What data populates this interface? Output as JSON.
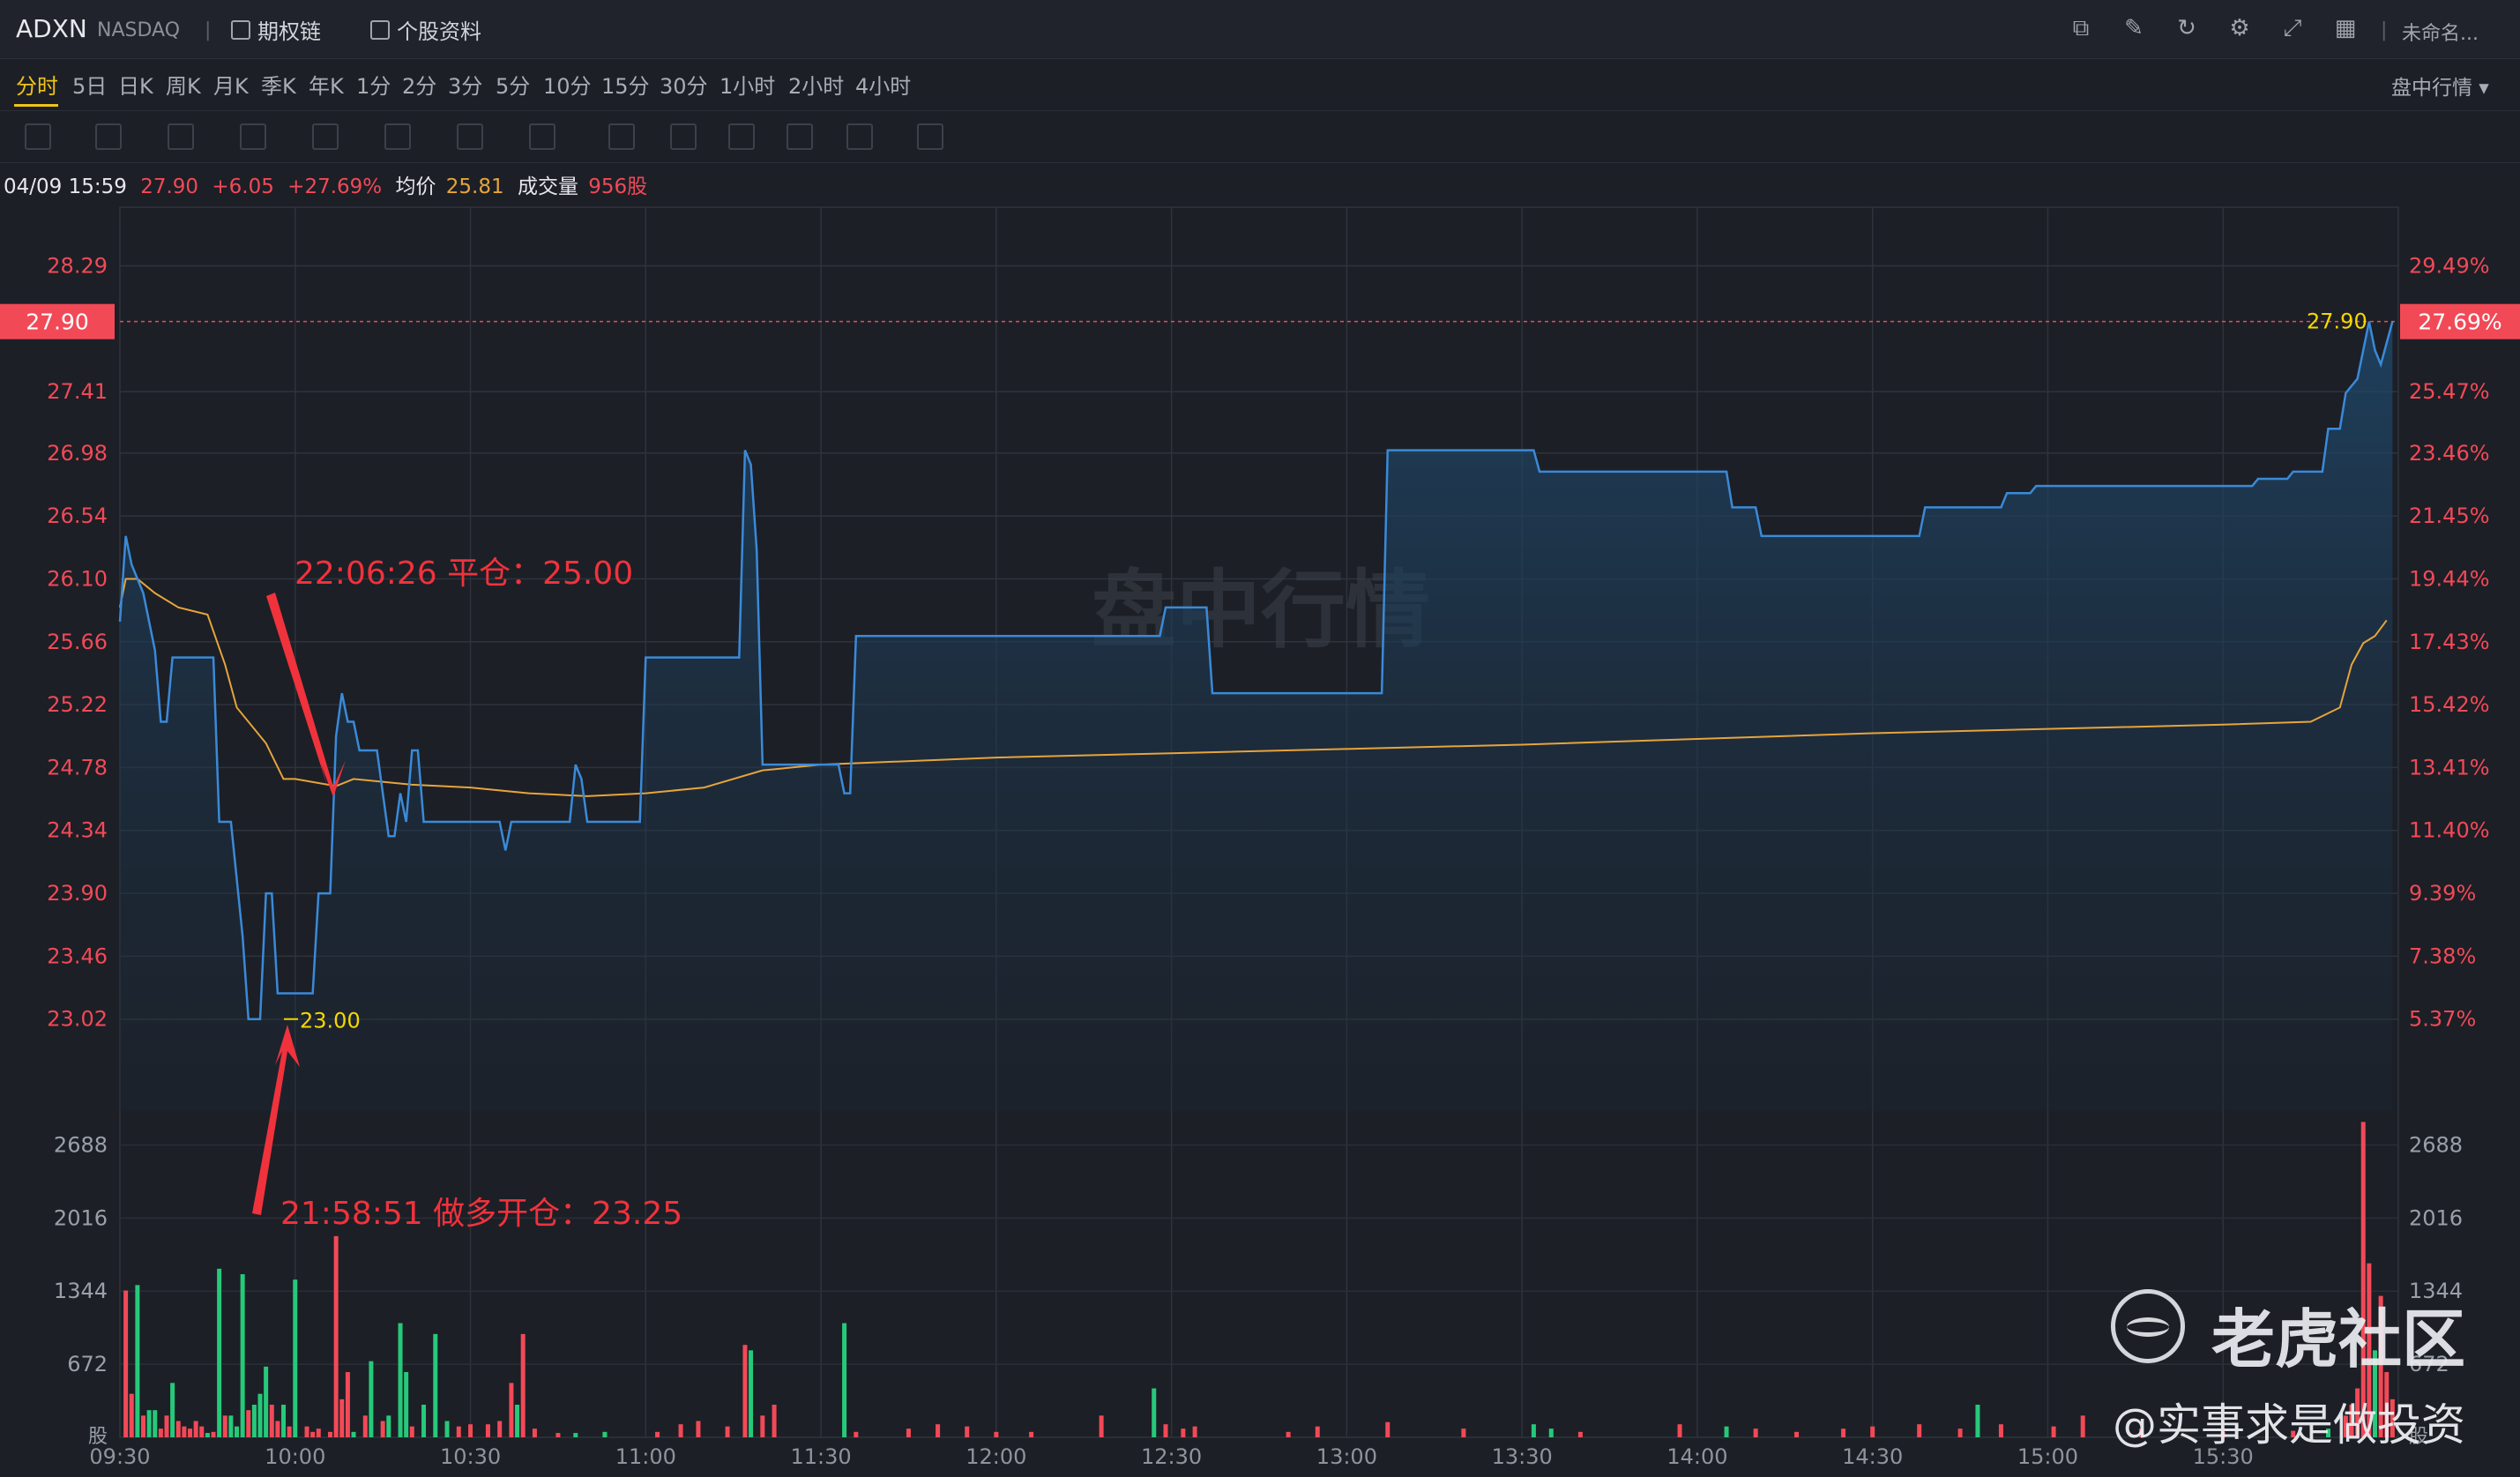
{
  "header": {
    "symbol": "ADXN",
    "exchange": "NASDAQ",
    "options_chain": "期权链",
    "stock_profile": "个股资料",
    "layout_name": "未命名..."
  },
  "timeframes": [
    "分时",
    "5日",
    "日K",
    "周K",
    "月K",
    "季K",
    "年K",
    "1分",
    "2分",
    "3分",
    "5分",
    "10分",
    "15分",
    "30分",
    "1小时",
    "2小时",
    "4小时"
  ],
  "active_timeframe": "分时",
  "market_mode": "盘中行情",
  "info": {
    "datetime": "04/09 15:59",
    "price": "27.90",
    "change": "+6.05",
    "change_pct": "+27.69%",
    "avg_label": "均价",
    "avg_value": "25.81",
    "vol_label": "成交量",
    "vol_value": "956股"
  },
  "watermark": "盘中行情",
  "annotations": {
    "close": "22:06:26 平仓：25.00",
    "open": "21:58:51 做多开仓：23.25",
    "low_marker": "23.00",
    "last_marker": "27.90"
  },
  "branding": {
    "community": "老虎社区",
    "author": "@实事求是做投资"
  },
  "colors": {
    "up": "#f24957",
    "down": "#26c97a",
    "price_line": "#3a8ad8",
    "avg_line": "#e7a43c",
    "annotation": "#f0323c",
    "marker": "#f5d800"
  },
  "chart_data": {
    "type": "line",
    "price_axis": {
      "ylim": [
        22.5,
        28.7
      ],
      "ticks": [
        "28.29",
        "27.41",
        "26.98",
        "26.54",
        "26.10",
        "25.66",
        "25.22",
        "24.78",
        "24.34",
        "23.90",
        "23.46",
        "23.02"
      ],
      "current": "27.90",
      "pct_ticks": [
        "29.49%",
        "25.47%",
        "23.46%",
        "21.45%",
        "19.44%",
        "17.43%",
        "15.42%",
        "13.41%",
        "11.40%",
        "9.39%",
        "7.38%",
        "5.37%"
      ],
      "current_pct": "27.69%"
    },
    "x_ticks": [
      "09:30",
      "10:00",
      "10:30",
      "11:00",
      "11:30",
      "12:00",
      "12:30",
      "13:00",
      "13:30",
      "14:00",
      "14:30",
      "15:00",
      "15:30"
    ],
    "session": [
      "09:30",
      "16:00"
    ],
    "price": [
      [
        "09:30",
        25.8
      ],
      [
        "09:31",
        26.4
      ],
      [
        "09:32",
        26.2
      ],
      [
        "09:34",
        26.0
      ],
      [
        "09:36",
        25.6
      ],
      [
        "09:37",
        25.1
      ],
      [
        "09:38",
        25.1
      ],
      [
        "09:39",
        25.55
      ],
      [
        "09:46",
        25.55
      ],
      [
        "09:47",
        24.4
      ],
      [
        "09:49",
        24.4
      ],
      [
        "09:51",
        23.6
      ],
      [
        "09:52",
        23.02
      ],
      [
        "09:54",
        23.02
      ],
      [
        "09:55",
        23.9
      ],
      [
        "09:56",
        23.9
      ],
      [
        "09:57",
        23.2
      ],
      [
        "09:58",
        23.2
      ],
      [
        "10:00",
        23.2
      ],
      [
        "10:03",
        23.2
      ],
      [
        "10:04",
        23.9
      ],
      [
        "10:06",
        23.9
      ],
      [
        "10:07",
        25.0
      ],
      [
        "10:08",
        25.3
      ],
      [
        "10:09",
        25.1
      ],
      [
        "10:10",
        25.1
      ],
      [
        "10:11",
        24.9
      ],
      [
        "10:14",
        24.9
      ],
      [
        "10:15",
        24.6
      ],
      [
        "10:16",
        24.3
      ],
      [
        "10:17",
        24.3
      ],
      [
        "10:18",
        24.6
      ],
      [
        "10:19",
        24.4
      ],
      [
        "10:20",
        24.9
      ],
      [
        "10:21",
        24.9
      ],
      [
        "10:22",
        24.4
      ],
      [
        "10:30",
        24.4
      ],
      [
        "10:35",
        24.4
      ],
      [
        "10:36",
        24.2
      ],
      [
        "10:37",
        24.4
      ],
      [
        "10:47",
        24.4
      ],
      [
        "10:48",
        24.8
      ],
      [
        "10:49",
        24.7
      ],
      [
        "10:50",
        24.4
      ],
      [
        "10:59",
        24.4
      ],
      [
        "11:00",
        25.55
      ],
      [
        "11:16",
        25.55
      ],
      [
        "11:17",
        27.0
      ],
      [
        "11:18",
        26.9
      ],
      [
        "11:19",
        26.3
      ],
      [
        "11:20",
        24.8
      ],
      [
        "11:33",
        24.8
      ],
      [
        "11:34",
        24.6
      ],
      [
        "11:35",
        24.6
      ],
      [
        "11:36",
        25.7
      ],
      [
        "12:28",
        25.7
      ],
      [
        "12:29",
        25.9
      ],
      [
        "12:36",
        25.9
      ],
      [
        "12:37",
        25.3
      ],
      [
        "13:06",
        25.3
      ],
      [
        "13:07",
        27.0
      ],
      [
        "13:32",
        27.0
      ],
      [
        "13:33",
        26.85
      ],
      [
        "14:05",
        26.85
      ],
      [
        "14:06",
        26.6
      ],
      [
        "14:10",
        26.6
      ],
      [
        "14:11",
        26.4
      ],
      [
        "14:38",
        26.4
      ],
      [
        "14:39",
        26.6
      ],
      [
        "14:52",
        26.6
      ],
      [
        "14:53",
        26.7
      ],
      [
        "14:57",
        26.7
      ],
      [
        "14:58",
        26.75
      ],
      [
        "15:35",
        26.75
      ],
      [
        "15:36",
        26.8
      ],
      [
        "15:41",
        26.8
      ],
      [
        "15:42",
        26.85
      ],
      [
        "15:47",
        26.85
      ],
      [
        "15:48",
        27.15
      ],
      [
        "15:50",
        27.15
      ],
      [
        "15:51",
        27.4
      ],
      [
        "15:53",
        27.5
      ],
      [
        "15:54",
        27.7
      ],
      [
        "15:55",
        27.9
      ],
      [
        "15:56",
        27.7
      ],
      [
        "15:57",
        27.6
      ],
      [
        "15:58",
        27.75
      ],
      [
        "15:59",
        27.9
      ]
    ],
    "average": [
      [
        "09:30",
        25.9
      ],
      [
        "09:31",
        26.1
      ],
      [
        "09:33",
        26.1
      ],
      [
        "09:36",
        26.0
      ],
      [
        "09:40",
        25.9
      ],
      [
        "09:45",
        25.85
      ],
      [
        "09:48",
        25.5
      ],
      [
        "09:50",
        25.2
      ],
      [
        "09:55",
        24.95
      ],
      [
        "09:58",
        24.7
      ],
      [
        "10:00",
        24.7
      ],
      [
        "10:07",
        24.65
      ],
      [
        "10:10",
        24.7
      ],
      [
        "10:20",
        24.66
      ],
      [
        "10:30",
        24.64
      ],
      [
        "10:40",
        24.6
      ],
      [
        "10:50",
        24.58
      ],
      [
        "11:00",
        24.6
      ],
      [
        "11:10",
        24.64
      ],
      [
        "11:20",
        24.76
      ],
      [
        "11:30",
        24.8
      ],
      [
        "12:00",
        24.85
      ],
      [
        "12:30",
        24.88
      ],
      [
        "13:00",
        24.91
      ],
      [
        "13:30",
        24.94
      ],
      [
        "14:00",
        24.98
      ],
      [
        "14:30",
        25.02
      ],
      [
        "15:00",
        25.05
      ],
      [
        "15:30",
        25.08
      ],
      [
        "15:45",
        25.1
      ],
      [
        "15:50",
        25.2
      ],
      [
        "15:52",
        25.5
      ],
      [
        "15:54",
        25.65
      ],
      [
        "15:56",
        25.7
      ],
      [
        "15:58",
        25.81
      ]
    ],
    "volume_axis": {
      "ylim": [
        0,
        3000
      ],
      "ticks": [
        "2688",
        "2016",
        "1344",
        "672"
      ],
      "bottom_label": "股"
    },
    "volume": [
      [
        "09:31",
        1350,
        "up"
      ],
      [
        "09:32",
        400,
        "up"
      ],
      [
        "09:33",
        1400,
        "down"
      ],
      [
        "09:34",
        200,
        "up"
      ],
      [
        "09:35",
        250,
        "down"
      ],
      [
        "09:36",
        250,
        "down"
      ],
      [
        "09:37",
        80,
        "up"
      ],
      [
        "09:38",
        200,
        "up"
      ],
      [
        "09:39",
        500,
        "down"
      ],
      [
        "09:40",
        150,
        "up"
      ],
      [
        "09:41",
        100,
        "up"
      ],
      [
        "09:42",
        80,
        "up"
      ],
      [
        "09:43",
        150,
        "up"
      ],
      [
        "09:44",
        100,
        "up"
      ],
      [
        "09:45",
        40,
        "down"
      ],
      [
        "09:46",
        50,
        "up"
      ],
      [
        "09:47",
        1550,
        "down"
      ],
      [
        "09:48",
        200,
        "up"
      ],
      [
        "09:49",
        200,
        "down"
      ],
      [
        "09:50",
        100,
        "down"
      ],
      [
        "09:51",
        1500,
        "down"
      ],
      [
        "09:52",
        250,
        "up"
      ],
      [
        "09:53",
        300,
        "down"
      ],
      [
        "09:54",
        400,
        "down"
      ],
      [
        "09:55",
        650,
        "down"
      ],
      [
        "09:56",
        300,
        "up"
      ],
      [
        "09:57",
        150,
        "up"
      ],
      [
        "09:58",
        300,
        "down"
      ],
      [
        "09:59",
        100,
        "up"
      ],
      [
        "10:00",
        1450,
        "down"
      ],
      [
        "10:02",
        100,
        "up"
      ],
      [
        "10:03",
        50,
        "up"
      ],
      [
        "10:04",
        80,
        "up"
      ],
      [
        "10:06",
        50,
        "up"
      ],
      [
        "10:07",
        1850,
        "up"
      ],
      [
        "10:08",
        350,
        "up"
      ],
      [
        "10:09",
        600,
        "up"
      ],
      [
        "10:10",
        50,
        "down"
      ],
      [
        "10:12",
        200,
        "up"
      ],
      [
        "10:13",
        700,
        "down"
      ],
      [
        "10:15",
        150,
        "up"
      ],
      [
        "10:16",
        200,
        "down"
      ],
      [
        "10:18",
        1050,
        "down"
      ],
      [
        "10:19",
        600,
        "down"
      ],
      [
        "10:20",
        100,
        "up"
      ],
      [
        "10:22",
        300,
        "down"
      ],
      [
        "10:24",
        950,
        "down"
      ],
      [
        "10:26",
        150,
        "down"
      ],
      [
        "10:28",
        100,
        "up"
      ],
      [
        "10:30",
        120,
        "up"
      ],
      [
        "10:33",
        120,
        "up"
      ],
      [
        "10:35",
        150,
        "up"
      ],
      [
        "10:37",
        500,
        "up"
      ],
      [
        "10:38",
        300,
        "down"
      ],
      [
        "10:39",
        950,
        "up"
      ],
      [
        "10:41",
        80,
        "up"
      ],
      [
        "10:45",
        40,
        "up"
      ],
      [
        "10:48",
        40,
        "down"
      ],
      [
        "10:53",
        50,
        "down"
      ],
      [
        "11:02",
        50,
        "up"
      ],
      [
        "11:06",
        120,
        "up"
      ],
      [
        "11:09",
        150,
        "up"
      ],
      [
        "11:14",
        100,
        "up"
      ],
      [
        "11:17",
        850,
        "up"
      ],
      [
        "11:18",
        800,
        "down"
      ],
      [
        "11:20",
        200,
        "up"
      ],
      [
        "11:22",
        300,
        "up"
      ],
      [
        "11:34",
        1050,
        "down"
      ],
      [
        "11:36",
        50,
        "up"
      ],
      [
        "11:45",
        80,
        "up"
      ],
      [
        "11:50",
        120,
        "up"
      ],
      [
        "11:55",
        100,
        "up"
      ],
      [
        "12:00",
        50,
        "up"
      ],
      [
        "12:06",
        50,
        "up"
      ],
      [
        "12:18",
        200,
        "up"
      ],
      [
        "12:27",
        450,
        "down"
      ],
      [
        "12:29",
        120,
        "up"
      ],
      [
        "12:32",
        80,
        "up"
      ],
      [
        "12:34",
        100,
        "up"
      ],
      [
        "12:50",
        50,
        "up"
      ],
      [
        "12:55",
        100,
        "up"
      ],
      [
        "13:07",
        140,
        "up"
      ],
      [
        "13:20",
        80,
        "up"
      ],
      [
        "13:32",
        120,
        "down"
      ],
      [
        "13:35",
        80,
        "down"
      ],
      [
        "13:40",
        50,
        "up"
      ],
      [
        "13:57",
        120,
        "up"
      ],
      [
        "14:05",
        100,
        "down"
      ],
      [
        "14:10",
        80,
        "up"
      ],
      [
        "14:17",
        50,
        "up"
      ],
      [
        "14:25",
        80,
        "up"
      ],
      [
        "14:30",
        100,
        "up"
      ],
      [
        "14:38",
        120,
        "up"
      ],
      [
        "14:45",
        80,
        "up"
      ],
      [
        "14:48",
        300,
        "down"
      ],
      [
        "14:52",
        120,
        "up"
      ],
      [
        "15:01",
        100,
        "up"
      ],
      [
        "15:06",
        200,
        "up"
      ],
      [
        "15:16",
        80,
        "up"
      ],
      [
        "15:30",
        50,
        "up"
      ],
      [
        "15:42",
        60,
        "up"
      ],
      [
        "15:48",
        80,
        "down"
      ],
      [
        "15:51",
        200,
        "up"
      ],
      [
        "15:52",
        300,
        "up"
      ],
      [
        "15:53",
        450,
        "up"
      ],
      [
        "15:54",
        2900,
        "up"
      ],
      [
        "15:55",
        1600,
        "up"
      ],
      [
        "15:56",
        800,
        "down"
      ],
      [
        "15:57",
        1300,
        "up"
      ],
      [
        "15:58",
        600,
        "up"
      ],
      [
        "15:59",
        350,
        "up"
      ]
    ]
  }
}
